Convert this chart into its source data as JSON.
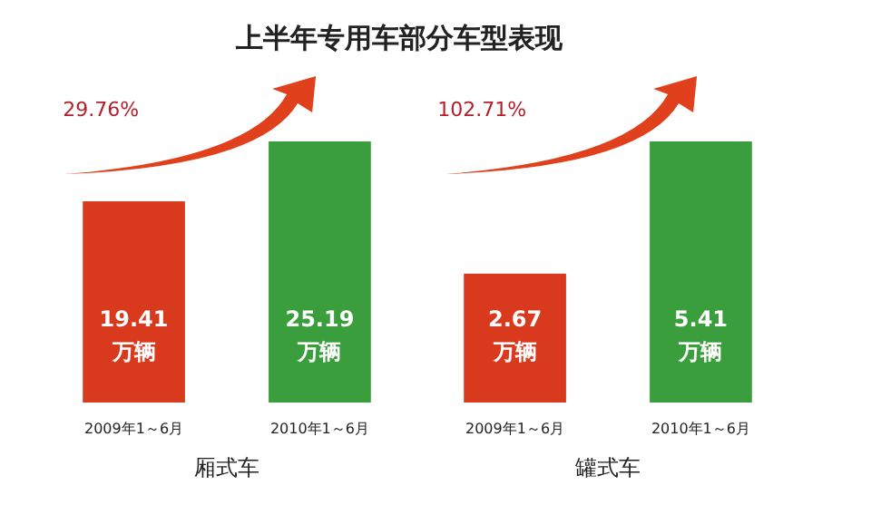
{
  "chart_data": [
    {
      "type": "bar",
      "title": "上半年专用车部分车型表现",
      "xlabel": "厢式车",
      "categories": [
        "2009年1～6月",
        "2010年1～6月"
      ],
      "values": [
        19.41,
        25.19
      ],
      "colors": [
        "#d93a1e",
        "#3a9e3c"
      ],
      "value_labels": [
        "19.41 万辆",
        "25.19 万辆"
      ],
      "annotations": [
        "29.76%"
      ]
    },
    {
      "type": "bar",
      "xlabel": "罐式车",
      "categories": [
        "2009年1～6月",
        "2010年1～6月"
      ],
      "values": [
        2.67,
        5.41
      ],
      "colors": [
        "#d93a1e",
        "#3a9e3c"
      ],
      "value_labels": [
        "2.67 万辆",
        "5.41 万辆"
      ],
      "annotations": [
        "102.71%"
      ]
    }
  ]
}
